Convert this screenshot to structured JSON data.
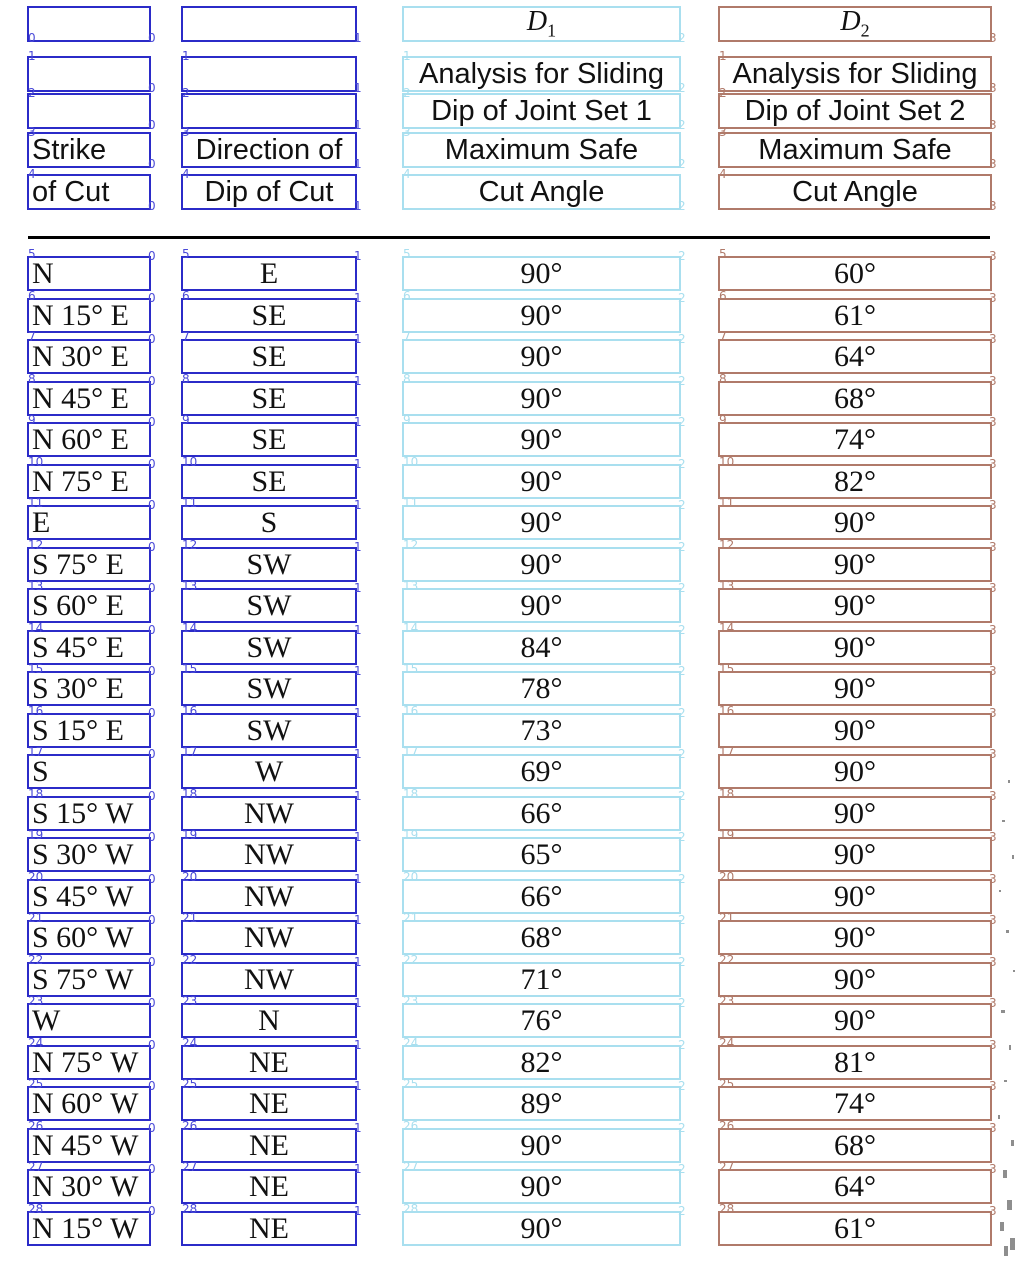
{
  "header": {
    "col1": [
      "",
      "",
      "",
      "Strike",
      "of Cut"
    ],
    "col2": [
      "",
      "",
      "",
      "Direction of",
      "Dip of Cut"
    ],
    "col3": [
      "D",
      "Analysis for Sliding",
      "Dip of Joint Set 1",
      "Maximum Safe",
      "Cut Angle"
    ],
    "col4": [
      "D",
      "Analysis for Sliding",
      "Dip of Joint Set 2",
      "Maximum Safe",
      "Cut Angle"
    ],
    "col3_sub": "1",
    "col4_sub": "2"
  },
  "rows": [
    {
      "strike": "N",
      "dip_dir": "E",
      "d1": "90°",
      "d2": "60°"
    },
    {
      "strike": "N 15° E",
      "dip_dir": "SE",
      "d1": "90°",
      "d2": "61°"
    },
    {
      "strike": "N 30° E",
      "dip_dir": "SE",
      "d1": "90°",
      "d2": "64°"
    },
    {
      "strike": "N 45° E",
      "dip_dir": "SE",
      "d1": "90°",
      "d2": "68°"
    },
    {
      "strike": "N 60° E",
      "dip_dir": "SE",
      "d1": "90°",
      "d2": "74°"
    },
    {
      "strike": "N 75° E",
      "dip_dir": "SE",
      "d1": "90°",
      "d2": "82°"
    },
    {
      "strike": "E",
      "dip_dir": "S",
      "d1": "90°",
      "d2": "90°"
    },
    {
      "strike": "S 75° E",
      "dip_dir": "SW",
      "d1": "90°",
      "d2": "90°"
    },
    {
      "strike": "S 60° E",
      "dip_dir": "SW",
      "d1": "90°",
      "d2": "90°"
    },
    {
      "strike": "S 45° E",
      "dip_dir": "SW",
      "d1": "84°",
      "d2": "90°"
    },
    {
      "strike": "S 30° E",
      "dip_dir": "SW",
      "d1": "78°",
      "d2": "90°"
    },
    {
      "strike": "S 15° E",
      "dip_dir": "SW",
      "d1": "73°",
      "d2": "90°"
    },
    {
      "strike": "S",
      "dip_dir": "W",
      "d1": "69°",
      "d2": "90°"
    },
    {
      "strike": "S 15° W",
      "dip_dir": "NW",
      "d1": "66°",
      "d2": "90°"
    },
    {
      "strike": "S 30° W",
      "dip_dir": "NW",
      "d1": "65°",
      "d2": "90°"
    },
    {
      "strike": "S 45° W",
      "dip_dir": "NW",
      "d1": "66°",
      "d2": "90°"
    },
    {
      "strike": "S 60° W",
      "dip_dir": "NW",
      "d1": "68°",
      "d2": "90°"
    },
    {
      "strike": "S 75° W",
      "dip_dir": "NW",
      "d1": "71°",
      "d2": "90°"
    },
    {
      "strike": "W",
      "dip_dir": "N",
      "d1": "76°",
      "d2": "90°"
    },
    {
      "strike": "N 75° W",
      "dip_dir": "NE",
      "d1": "82°",
      "d2": "81°"
    },
    {
      "strike": "N 60° W",
      "dip_dir": "NE",
      "d1": "89°",
      "d2": "74°"
    },
    {
      "strike": "N 45° W",
      "dip_dir": "NE",
      "d1": "90°",
      "d2": "68°"
    },
    {
      "strike": "N 30° W",
      "dip_dir": "NE",
      "d1": "90°",
      "d2": "64°"
    },
    {
      "strike": "N 15° W",
      "dip_dir": "NE",
      "d1": "90°",
      "d2": "61°"
    }
  ],
  "box_colors": {
    "col1": "#2b2bc8",
    "col2": "#2b2bc8",
    "col3": "#a9dfef",
    "col4": "#b07a6a"
  }
}
